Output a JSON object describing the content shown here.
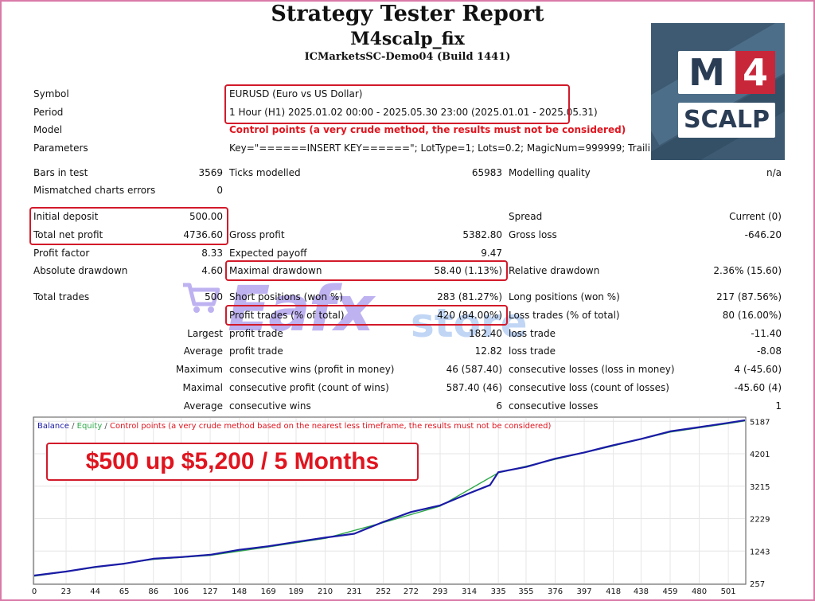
{
  "header": {
    "title": "Strategy Tester Report",
    "ea_name": "M4scalp_fix",
    "server": "ICMarketsSC-Demo04 (Build 1441)"
  },
  "logo": {
    "line1_left": "M",
    "line1_right": "4",
    "line2": "SCALP"
  },
  "watermark": {
    "brand": "Eafx",
    "suffix": "store"
  },
  "settings": {
    "symbol_label": "Symbol",
    "symbol": "EURUSD (Euro vs US Dollar)",
    "period_label": "Period",
    "period": "1 Hour (H1) 2025.01.02 00:00 - 2025.05.30 23:00 (2025.01.01 - 2025.05.31)",
    "model_label": "Model",
    "model": "Control points (a very crude method, the results must not be considered)",
    "params_label": "Parameters",
    "params": "Key=\"======INSERT KEY======\"; LotType=1; Lots=0.2; MagicNum=999999; TrailingStop="
  },
  "stats": {
    "bars_label": "Bars in test",
    "bars": "3569",
    "ticks_label": "Ticks modelled",
    "ticks": "65983",
    "quality_label": "Modelling quality",
    "quality": "n/a",
    "mismatch_label": "Mismatched charts errors",
    "mismatch": "0",
    "deposit_label": "Initial deposit",
    "deposit": "500.00",
    "spread_label": "Spread",
    "spread": "Current (0)",
    "netprofit_label": "Total net profit",
    "netprofit": "4736.60",
    "grossprofit_label": "Gross profit",
    "grossprofit": "5382.80",
    "grossloss_label": "Gross loss",
    "grossloss": "-646.20",
    "pf_label": "Profit factor",
    "pf": "8.33",
    "payoff_label": "Expected payoff",
    "payoff": "9.47",
    "absdd_label": "Absolute drawdown",
    "absdd": "4.60",
    "maxdd_label": "Maximal drawdown",
    "maxdd": "58.40 (1.13%)",
    "reldd_label": "Relative drawdown",
    "reldd": "2.36% (15.60)",
    "trades_label": "Total trades",
    "trades": "500",
    "short_label": "Short positions (won %)",
    "short": "283 (81.27%)",
    "long_label": "Long positions (won %)",
    "long": "217 (87.56%)",
    "ptrades_label": "Profit trades (% of total)",
    "ptrades": "420 (84.00%)",
    "ltrades_label": "Loss trades (% of total)",
    "ltrades": "80 (16.00%)",
    "largest_label": "Largest",
    "avg_label": "Average",
    "max_label": "Maximum",
    "maximal_label": "Maximal",
    "ptrade_label": "profit trade",
    "ltrade_label": "loss trade",
    "largest_profit": "182.40",
    "largest_loss": "-11.40",
    "avg_profit": "12.82",
    "avg_loss": "-8.08",
    "cw_money_label": "consecutive wins (profit in money)",
    "cw_money": "46 (587.40)",
    "cl_money_label": "consecutive losses (loss in money)",
    "cl_money": "4 (-45.60)",
    "cp_count_label": "consecutive profit (count of wins)",
    "cp_count": "587.40 (46)",
    "cl_count_label": "consecutive loss (count of losses)",
    "cl_count": "-45.60 (4)",
    "acw_label": "consecutive wins",
    "acw": "6",
    "acl_label": "consecutive losses",
    "acl": "1"
  },
  "banner": "$500 up $5,200 / 5 Months",
  "chart_data": {
    "type": "line",
    "legend": {
      "balance": "Balance",
      "sep1": " / ",
      "equity": "Equity",
      "sep2": " / ",
      "note": "Control points (a very crude method based on the nearest less timeframe, the results must not be considered)"
    },
    "legend_position": "top-left",
    "x_ticks": [
      0,
      23,
      44,
      65,
      86,
      106,
      127,
      148,
      169,
      189,
      210,
      231,
      252,
      272,
      293,
      314,
      335,
      355,
      376,
      397,
      418,
      438,
      459,
      480,
      501
    ],
    "y_ticks": [
      257,
      1243,
      2229,
      3215,
      4201,
      5187
    ],
    "xlim": [
      0,
      513
    ],
    "ylim": [
      257,
      5290
    ],
    "grid": true,
    "series": [
      {
        "name": "Balance",
        "color": "#1a1aa6",
        "x": [
          0,
          23,
          44,
          65,
          86,
          106,
          127,
          148,
          169,
          189,
          210,
          231,
          252,
          272,
          293,
          314,
          329,
          335,
          355,
          376,
          397,
          418,
          438,
          459,
          480,
          501,
          513
        ],
        "values": [
          500,
          620,
          760,
          860,
          1010,
          1060,
          1130,
          1280,
          1390,
          1520,
          1650,
          1770,
          2130,
          2430,
          2630,
          3000,
          3250,
          3640,
          3800,
          4050,
          4240,
          4460,
          4650,
          4880,
          5010,
          5140,
          5220
        ]
      },
      {
        "name": "Equity",
        "color": "#2fa84a",
        "x": [
          0,
          44,
          86,
          127,
          169,
          210,
          252,
          293,
          335,
          376,
          418,
          459,
          501,
          513
        ],
        "values": [
          480,
          745,
          990,
          1110,
          1370,
          1630,
          2110,
          2610,
          3620,
          4030,
          4440,
          4860,
          5120,
          5200
        ]
      }
    ]
  }
}
